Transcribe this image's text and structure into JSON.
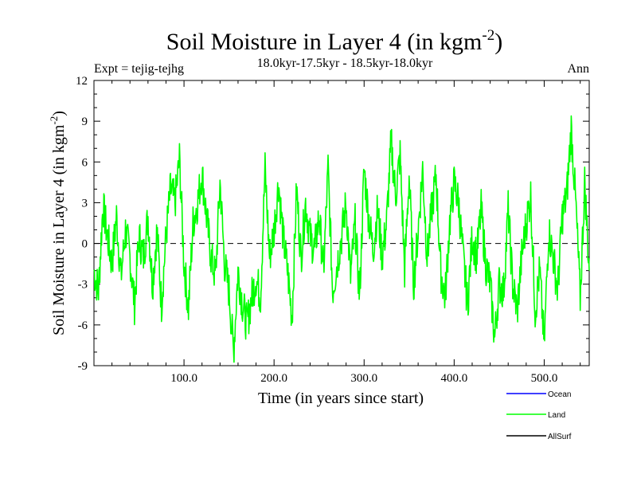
{
  "chart_data": {
    "type": "line",
    "title": "Soil Moisture in Layer 4 (in kgm",
    "title_sup": "-2",
    "title_end": ")",
    "subtitle": "18.0kyr-17.5kyr - 18.5kyr-18.0kyr",
    "expt_label": "Expt = tejig-tejhg",
    "season_label": "Ann",
    "xlabel": "Time (in years since start)",
    "ylabel": "Soil Moisture in Layer 4 (in kgm",
    "ylabel_sup": "-2",
    "ylabel_end": ")",
    "xlim": [
      0,
      550
    ],
    "ylim": [
      -9,
      12
    ],
    "xticks": [
      100,
      200,
      300,
      400,
      500
    ],
    "xtick_labels": [
      "100.0",
      "200.0",
      "300.0",
      "400.0",
      "500.0"
    ],
    "yticks": [
      -9,
      -6,
      -3,
      0,
      3,
      6,
      9,
      12
    ],
    "ytick_labels": [
      "-9",
      "-6",
      "-3",
      "0",
      "3",
      "6",
      "9",
      "12"
    ],
    "zero_line": true,
    "legend": [
      {
        "name": "Ocean",
        "color": "#0000ff"
      },
      {
        "name": "Land",
        "color": "#00ff00"
      },
      {
        "name": "AllSurf",
        "color": "#000000"
      }
    ],
    "series": [
      {
        "name": "Land",
        "color": "#00ff00",
        "x": [
          0,
          5,
          10,
          15,
          20,
          25,
          30,
          35,
          40,
          45,
          50,
          55,
          60,
          65,
          70,
          75,
          80,
          85,
          90,
          95,
          100,
          105,
          110,
          115,
          120,
          125,
          130,
          135,
          140,
          145,
          150,
          155,
          160,
          165,
          170,
          175,
          180,
          185,
          190,
          195,
          200,
          205,
          210,
          215,
          220,
          225,
          230,
          235,
          240,
          245,
          250,
          255,
          260,
          265,
          270,
          275,
          280,
          285,
          290,
          295,
          300,
          305,
          310,
          315,
          320,
          325,
          330,
          335,
          340,
          345,
          350,
          355,
          360,
          365,
          370,
          375,
          380,
          385,
          390,
          395,
          400,
          405,
          410,
          415,
          420,
          425,
          430,
          435,
          440,
          445,
          450,
          455,
          460,
          465,
          470,
          475,
          480,
          485,
          490,
          495,
          500,
          505,
          510,
          515,
          520,
          525,
          530,
          535,
          540,
          545,
          550
        ],
        "values": [
          -2.0,
          -3.5,
          2.8,
          0.5,
          -1.5,
          2.0,
          -2.5,
          1.0,
          -1.0,
          -4.5,
          0.5,
          -1.0,
          2.0,
          -3.0,
          1.0,
          -4.5,
          0.5,
          4.0,
          3.0,
          6.2,
          -1.5,
          -4.8,
          1.5,
          3.0,
          5.2,
          2.0,
          -1.0,
          -2.5,
          4.5,
          -1.5,
          -3.5,
          -8.0,
          -2.0,
          -4.5,
          -6.0,
          -4.0,
          -2.5,
          -4.0,
          5.5,
          -1.0,
          1.0,
          4.5,
          0.5,
          -2.0,
          -5.5,
          4.0,
          -1.0,
          3.0,
          0.5,
          -0.5,
          2.0,
          -2.0,
          5.5,
          -3.5,
          -1.5,
          0.5,
          3.0,
          -2.5,
          1.5,
          -4.0,
          5.5,
          2.0,
          -0.5,
          2.5,
          -1.0,
          1.5,
          7.5,
          3.5,
          6.5,
          -2.0,
          5.0,
          -3.0,
          1.0,
          5.5,
          -1.0,
          2.5,
          5.0,
          -2.0,
          -4.0,
          1.5,
          4.5,
          3.0,
          -1.0,
          -4.5,
          0.5,
          -1.0,
          2.5,
          -1.5,
          -3.0,
          -7.0,
          -3.0,
          -3.5,
          2.5,
          -3.0,
          -5.0,
          -1.0,
          1.5,
          3.5,
          -5.0,
          -2.0,
          -7.5,
          1.0,
          -1.0,
          -3.5,
          2.0,
          3.5,
          8.5,
          3.0,
          -4.0,
          4.5,
          -2.0
        ]
      }
    ]
  }
}
